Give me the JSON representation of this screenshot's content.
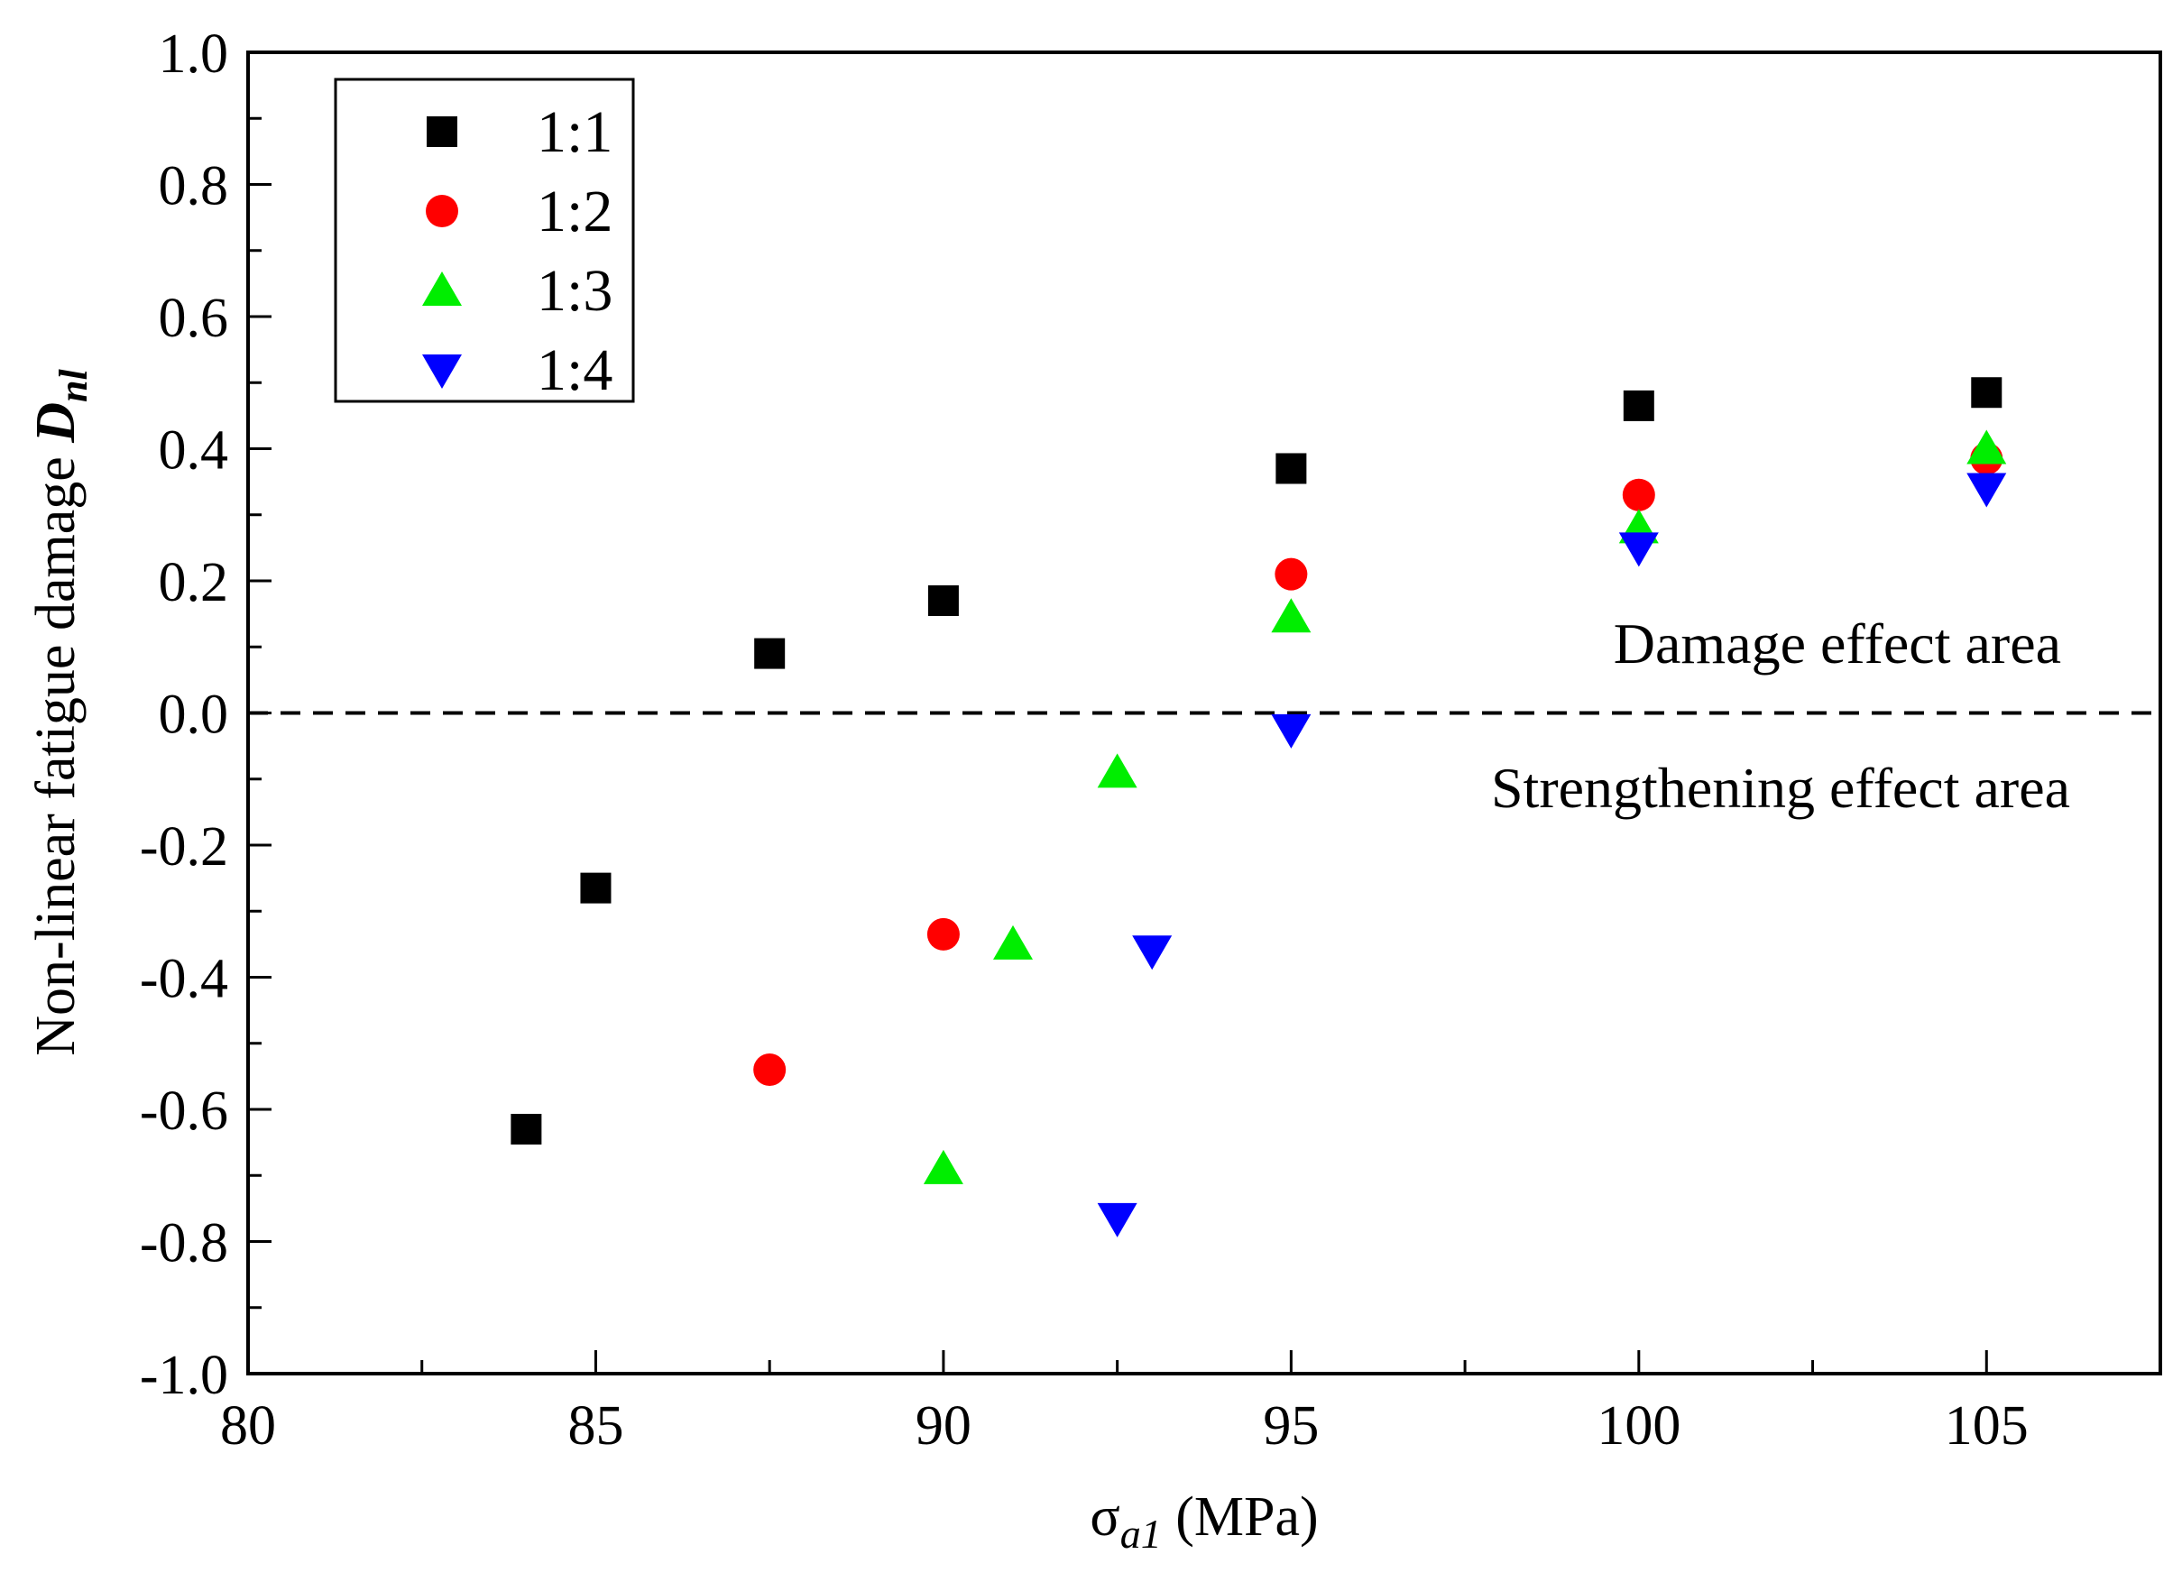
{
  "chart_data": {
    "type": "scatter",
    "title": "",
    "xlabel": "σ",
    "xlabel_sub": "a1",
    "xlabel_unit": " (MPa)",
    "ylabel": "Non-linear fatigue damage ",
    "ylabel_sym": "D",
    "ylabel_sub": "nl",
    "xlim": [
      80,
      107.5
    ],
    "ylim": [
      -1.0,
      1.0
    ],
    "xticks": [
      80,
      85,
      90,
      95,
      100,
      105
    ],
    "yticks": [
      1.0,
      0.8,
      0.6,
      0.4,
      0.2,
      0.0,
      -0.2,
      -0.4,
      -0.6,
      -0.8,
      -1.0
    ],
    "ytick_labels": [
      "1.0",
      "0.8",
      "0.6",
      "0.4",
      "0.2",
      "0.0",
      "-0.2",
      "-0.4",
      "-0.6",
      "-0.8",
      "-1.0"
    ],
    "reference_line": {
      "y": 0.0,
      "style": "dashed"
    },
    "annotations": {
      "upper": "Damage effect area",
      "lower": "Strengthening effect area"
    },
    "legend_position": "top-left",
    "series": [
      {
        "name": "1:1",
        "marker": "square",
        "color": "#000000",
        "x": [
          84,
          85,
          87.5,
          90,
          95,
          100,
          105
        ],
        "y": [
          -0.63,
          -0.265,
          0.09,
          0.17,
          0.37,
          0.465,
          0.485
        ]
      },
      {
        "name": "1:2",
        "marker": "circle",
        "color": "#ff0000",
        "x": [
          87.5,
          90,
          95,
          100,
          105
        ],
        "y": [
          -0.54,
          -0.335,
          0.21,
          0.33,
          0.385
        ]
      },
      {
        "name": "1:3",
        "marker": "triangle-up",
        "color": "#00ee00",
        "x": [
          90,
          91,
          92.5,
          95,
          100,
          105
        ],
        "y": [
          -0.69,
          -0.35,
          -0.09,
          0.145,
          0.28,
          0.4
        ]
      },
      {
        "name": "1:4",
        "marker": "triangle-down",
        "color": "#0000ff",
        "x": [
          92.5,
          93,
          95,
          100,
          105
        ],
        "y": [
          -0.765,
          -0.36,
          -0.025,
          0.25,
          0.34
        ]
      }
    ]
  }
}
